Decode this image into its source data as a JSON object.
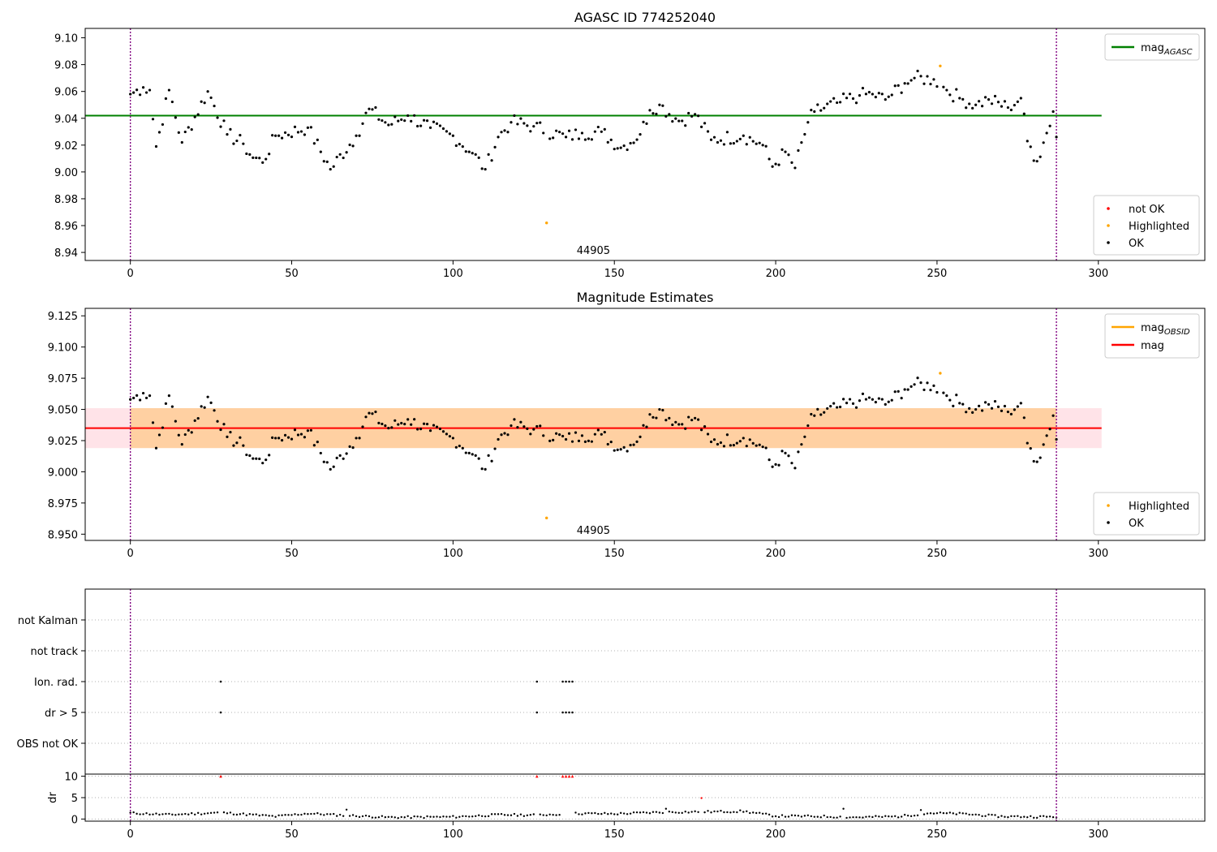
{
  "figure": {
    "top_title": "AGASC ID 774252040",
    "middle_title": "Magnitude Estimates",
    "obsid_label": "44905"
  },
  "chart_data": [
    {
      "type": "scatter",
      "title": "AGASC ID 774252040",
      "xlim": [
        -14,
        333
      ],
      "ylim": [
        8.934,
        9.107
      ],
      "xticks": [
        0,
        50,
        100,
        150,
        200,
        250,
        300
      ],
      "yticks": [
        8.94,
        8.96,
        8.98,
        9.0,
        9.02,
        9.04,
        9.06,
        9.08,
        9.1
      ],
      "ytick_decimals": 2,
      "grid": false,
      "obs_boundaries": [
        0,
        287
      ],
      "obsid_annotation": {
        "text": "44905",
        "x": 143.5
      },
      "hlines": [
        {
          "name": "mag_AGASC",
          "label_main": "mag",
          "label_sub": "AGASC",
          "y": 9.042,
          "x_range": [
            -14,
            301
          ],
          "color": "#008000"
        }
      ],
      "legend_lines_placement": "upper right",
      "legend_points": [
        {
          "label": "not OK",
          "color": "#ff0000"
        },
        {
          "label": "Highlighted",
          "color": "#ffa500"
        },
        {
          "label": "OK",
          "color": "#000000"
        }
      ],
      "legend_points_placement": "lower right",
      "highlighted_points": [
        [
          129,
          8.962
        ],
        [
          251,
          9.079
        ]
      ],
      "not_ok_points": [],
      "ok_points_ref": "ok_series"
    },
    {
      "type": "scatter",
      "title": "Magnitude Estimates",
      "xlim": [
        -14,
        333
      ],
      "ylim": [
        8.945,
        9.131
      ],
      "xticks": [
        0,
        50,
        100,
        150,
        200,
        250,
        300
      ],
      "yticks": [
        8.95,
        8.975,
        9.0,
        9.025,
        9.05,
        9.075,
        9.1,
        9.125
      ],
      "ytick_decimals": 3,
      "grid": false,
      "obs_boundaries": [
        0,
        287
      ],
      "obsid_annotation": {
        "text": "44905",
        "x": 143.5
      },
      "hlines": [
        {
          "name": "mag",
          "label_main": "mag",
          "y": 9.035,
          "x_range": [
            -14,
            301
          ],
          "color": "#ff0000"
        }
      ],
      "bands": [
        {
          "name": "mag band",
          "y_range": [
            9.019,
            9.051
          ],
          "x_range": [
            -14,
            301
          ],
          "color": "#ffc0cb"
        },
        {
          "name": "mag_OBSID band",
          "y_range": [
            9.019,
            9.051
          ],
          "x_range": [
            0,
            287
          ],
          "color": "#ffa500"
        }
      ],
      "legend_lines": [
        {
          "label_main": "mag",
          "label_sub": "OBSID",
          "color": "#ffa500"
        },
        {
          "label_main": "mag",
          "color": "#ff0000"
        }
      ],
      "legend_lines_placement": "upper right",
      "legend_points": [
        {
          "label": "Highlighted",
          "color": "#ffa500"
        },
        {
          "label": "OK",
          "color": "#000000"
        }
      ],
      "legend_points_placement": "lower right",
      "highlighted_points": [
        [
          129,
          8.963
        ],
        [
          251,
          9.079
        ]
      ],
      "ok_points_ref": "ok_series"
    },
    {
      "type": "scatter",
      "title": "",
      "xlim": [
        -14,
        333
      ],
      "categories": [
        "OBS not OK",
        "dr > 5",
        "Ion. rad.",
        "not track",
        "not Kalman"
      ],
      "grid": "horizontal dotted",
      "obs_boundaries": [
        0,
        287
      ],
      "flags": {
        "dr > 5": [
          28,
          126,
          134,
          135,
          136,
          137
        ],
        "Ion. rad.": [
          28,
          126,
          134,
          135,
          136,
          137
        ],
        "not track": [],
        "not Kalman": [],
        "OBS not OK": []
      }
    },
    {
      "type": "scatter",
      "title": "",
      "ylabel": "dr",
      "xlim": [
        -14,
        333
      ],
      "ylim": [
        -0.5,
        10.5
      ],
      "xticks": [
        0,
        50,
        100,
        150,
        200,
        250,
        300
      ],
      "yticks": [
        0,
        5,
        10
      ],
      "grid": "horizontal dotted",
      "obs_boundaries": [
        0,
        287
      ],
      "clipped_points": [
        28,
        126,
        134,
        135,
        136,
        137
      ],
      "clipped_value": 10,
      "red_points": [
        [
          177,
          4.9
        ]
      ],
      "spikes": [
        [
          67,
          2.2
        ],
        [
          166,
          2.4
        ],
        [
          221,
          2.4
        ],
        [
          245,
          2.1
        ]
      ],
      "dr_profile": [
        [
          0,
          1.4
        ],
        [
          12,
          1.0
        ],
        [
          28,
          1.5
        ],
        [
          45,
          0.6
        ],
        [
          55,
          1.3
        ],
        [
          65,
          0.9
        ],
        [
          80,
          0.4
        ],
        [
          100,
          0.5
        ],
        [
          115,
          1.0
        ],
        [
          125,
          0.9
        ],
        [
          138,
          1.3
        ],
        [
          150,
          1.2
        ],
        [
          165,
          1.6
        ],
        [
          180,
          1.7
        ],
        [
          190,
          1.8
        ],
        [
          200,
          0.7
        ],
        [
          215,
          0.6
        ],
        [
          225,
          0.4
        ],
        [
          238,
          0.6
        ],
        [
          248,
          1.4
        ],
        [
          258,
          1.2
        ],
        [
          270,
          0.6
        ],
        [
          287,
          0.5
        ]
      ]
    }
  ],
  "ok_series": {
    "n": 288,
    "key_points": [
      [
        0,
        9.058
      ],
      [
        4,
        9.063
      ],
      [
        6,
        9.061
      ],
      [
        8,
        9.019
      ],
      [
        12,
        9.061
      ],
      [
        16,
        9.022
      ],
      [
        24,
        9.06
      ],
      [
        30,
        9.028
      ],
      [
        35,
        9.021
      ],
      [
        37,
        9.013
      ],
      [
        41,
        9.007
      ],
      [
        45,
        9.027
      ],
      [
        55,
        9.033
      ],
      [
        62,
        9.002
      ],
      [
        70,
        9.027
      ],
      [
        74,
        9.047
      ],
      [
        80,
        9.035
      ],
      [
        86,
        9.042
      ],
      [
        93,
        9.033
      ],
      [
        100,
        9.027
      ],
      [
        106,
        9.014
      ],
      [
        110,
        9.002
      ],
      [
        114,
        9.026
      ],
      [
        118,
        9.037
      ],
      [
        125,
        9.034
      ],
      [
        135,
        9.026
      ],
      [
        140,
        9.029
      ],
      [
        146,
        9.03
      ],
      [
        152,
        9.018
      ],
      [
        158,
        9.028
      ],
      [
        161,
        9.046
      ],
      [
        164,
        9.05
      ],
      [
        170,
        9.038
      ],
      [
        175,
        9.043
      ],
      [
        180,
        9.024
      ],
      [
        190,
        9.027
      ],
      [
        196,
        9.02
      ],
      [
        199,
        9.004
      ],
      [
        203,
        9.015
      ],
      [
        206,
        9.003
      ],
      [
        210,
        9.037
      ],
      [
        212,
        9.045
      ],
      [
        220,
        9.052
      ],
      [
        226,
        9.057
      ],
      [
        230,
        9.058
      ],
      [
        234,
        9.054
      ],
      [
        240,
        9.066
      ],
      [
        243,
        9.07
      ],
      [
        249,
        9.069
      ],
      [
        253,
        9.061
      ],
      [
        257,
        9.055
      ],
      [
        262,
        9.05
      ],
      [
        266,
        9.054
      ],
      [
        272,
        9.048
      ],
      [
        276,
        9.055
      ],
      [
        278,
        9.023
      ],
      [
        281,
        9.008
      ],
      [
        284,
        9.029
      ],
      [
        286,
        9.045
      ],
      [
        287,
        9.026
      ]
    ]
  }
}
